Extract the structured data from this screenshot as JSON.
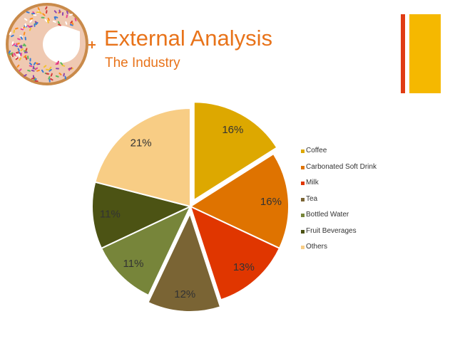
{
  "slide": {
    "title": "External Analysis",
    "subtitle": "The Industry",
    "accent_color": "#e8731a",
    "bar_colors": [
      "#e03c14",
      "#f5b800"
    ],
    "logo_icon": "donut-icon",
    "plus_icon": "plus-icon"
  },
  "chart_data": {
    "type": "pie",
    "title": "",
    "categories": [
      "Coffee",
      "Carbonated Soft Drink",
      "Milk",
      "Tea",
      "Bottled Water",
      "Fruit Beverages",
      "Others"
    ],
    "values": [
      16,
      16,
      13,
      12,
      11,
      11,
      21
    ],
    "labels": [
      "16%",
      "16%",
      "13%",
      "12%",
      "11%",
      "11%",
      "21%"
    ],
    "colors": [
      "#dda800",
      "#df7300",
      "#e03600",
      "#7a6434",
      "#77853a",
      "#4c5314",
      "#f8cd85"
    ],
    "exploded": [
      true,
      false,
      false,
      true,
      false,
      false,
      false
    ],
    "legend_position": "right"
  }
}
